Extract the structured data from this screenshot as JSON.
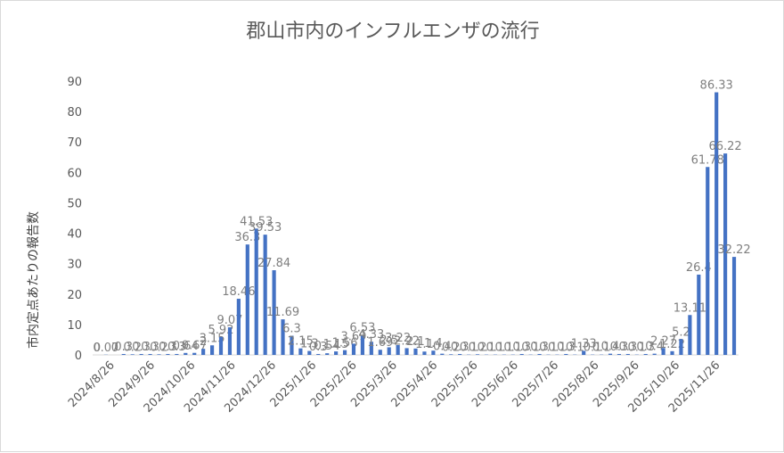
{
  "chart_data": {
    "type": "bar",
    "title": "郡山市内のインフルエンザの流行",
    "ylabel": "市内定点あたりの報告数",
    "xlabel": "",
    "ylim": [
      0,
      90
    ],
    "yticks": [
      0,
      10,
      20,
      30,
      40,
      50,
      60,
      70,
      80,
      90
    ],
    "xtick_labels": [
      "2024/8/26",
      "2024/9/26",
      "2024/10/26",
      "2024/11/26",
      "2024/12/26",
      "2025/1/26",
      "2025/2/26",
      "2025/3/26",
      "2025/4/26",
      "2025/5/26",
      "2025/6/26",
      "2025/7/26",
      "2025/8/26",
      "2025/9/26",
      "2025/10/26",
      "2025/11/26"
    ],
    "grid": false,
    "bar_color": "#4472c4",
    "series": [
      {
        "values": [
          0,
          0.07,
          0,
          0.3,
          0.2,
          0.3,
          0.3,
          0.2,
          0.3,
          0.3,
          0.64,
          0.67,
          2,
          3.15,
          5.92,
          9.07,
          18.46,
          36.3,
          41.53,
          39.53,
          27.84,
          11.69,
          6.3,
          2.15,
          1.3,
          0.3,
          0.54,
          1.15,
          1.56,
          3.69,
          6.53,
          4.33,
          1.69,
          2.5,
          3.22,
          2.22,
          2.1,
          1.1,
          1.4,
          0.4,
          0.2,
          0.3,
          0.1,
          0.2,
          0.1,
          0.1,
          0.1,
          0.1,
          0.3,
          0.1,
          0.3,
          0.1,
          0.1,
          0.3,
          0.1,
          1.33,
          0.1,
          0.1,
          0.4,
          0.3,
          0.3,
          0.1,
          0.3,
          0.4,
          2.27,
          1.22,
          5.2,
          13.11,
          26.4,
          61.78,
          86.33,
          66.22,
          32.22
        ],
        "labels": [
          "0",
          "0.07",
          "0",
          "0.3",
          "0.2",
          "0.3",
          "0.3",
          "0.2",
          "0.3",
          "0.3",
          "0.64",
          "0.67",
          "2",
          "3.15",
          "5.92",
          "9.07",
          "18.46",
          "36.3",
          "41.53",
          "39.53",
          "27.84",
          "11.69",
          "6.3",
          "2.15",
          "1.3",
          "0.3",
          "0.54",
          "1.15",
          "1.56",
          "3.69",
          "6.53",
          "4.33",
          "1.69",
          "2.5",
          "3.22",
          "2.22",
          "2.1",
          "1.1",
          "1.4",
          "0.4",
          "0.2",
          "0.3",
          "0.1",
          "0.2",
          "0.1",
          "0.1",
          "0.1",
          "0.1",
          "0.3",
          "0.1",
          "0.3",
          "0.1",
          "0.1",
          "0.3",
          "0.1",
          "1.33",
          "0.1",
          "0.1",
          "0.4",
          "0.3",
          "0.3",
          "0.1",
          "0.3",
          "0.4",
          "2.27",
          "1.22",
          "5.2",
          "13.11",
          "26.4",
          "61.78",
          "86.33",
          "66.22",
          "32.22"
        ]
      }
    ]
  }
}
